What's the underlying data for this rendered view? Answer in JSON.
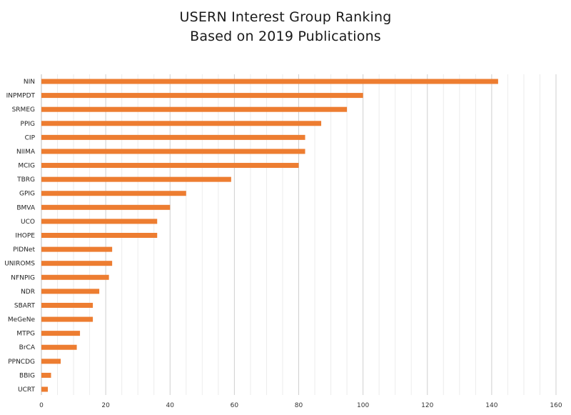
{
  "chart_data": {
    "type": "bar",
    "orientation": "horizontal",
    "title_lines": [
      "USERN Interest Group Ranking",
      "Based on 2019 Publications"
    ],
    "xlabel": "",
    "ylabel": "",
    "xlim": [
      0,
      160
    ],
    "x_ticks": [
      0,
      20,
      40,
      60,
      80,
      100,
      120,
      140,
      160
    ],
    "minor_grid_step": 5,
    "grid": true,
    "legend": "none",
    "bar_color": "#ED7D31",
    "categories": [
      "NIN",
      "INPMPDT",
      "SRMEG",
      "PPIG",
      "CIP",
      "NIIMA",
      "MCIG",
      "TBRG",
      "GPIG",
      "BMVA",
      "UCO",
      "IHOPE",
      "PIDNet",
      "UNIROMS",
      "NFNPIG",
      "NDR",
      "SBART",
      "MeGeNe",
      "MTPG",
      "BrCA",
      "PPNCDG",
      "BBIG",
      "UCRT"
    ],
    "values": [
      142,
      100,
      95,
      87,
      82,
      82,
      80,
      59,
      45,
      40,
      36,
      36,
      22,
      22,
      21,
      18,
      16,
      16,
      12,
      11,
      6,
      3,
      2
    ]
  }
}
